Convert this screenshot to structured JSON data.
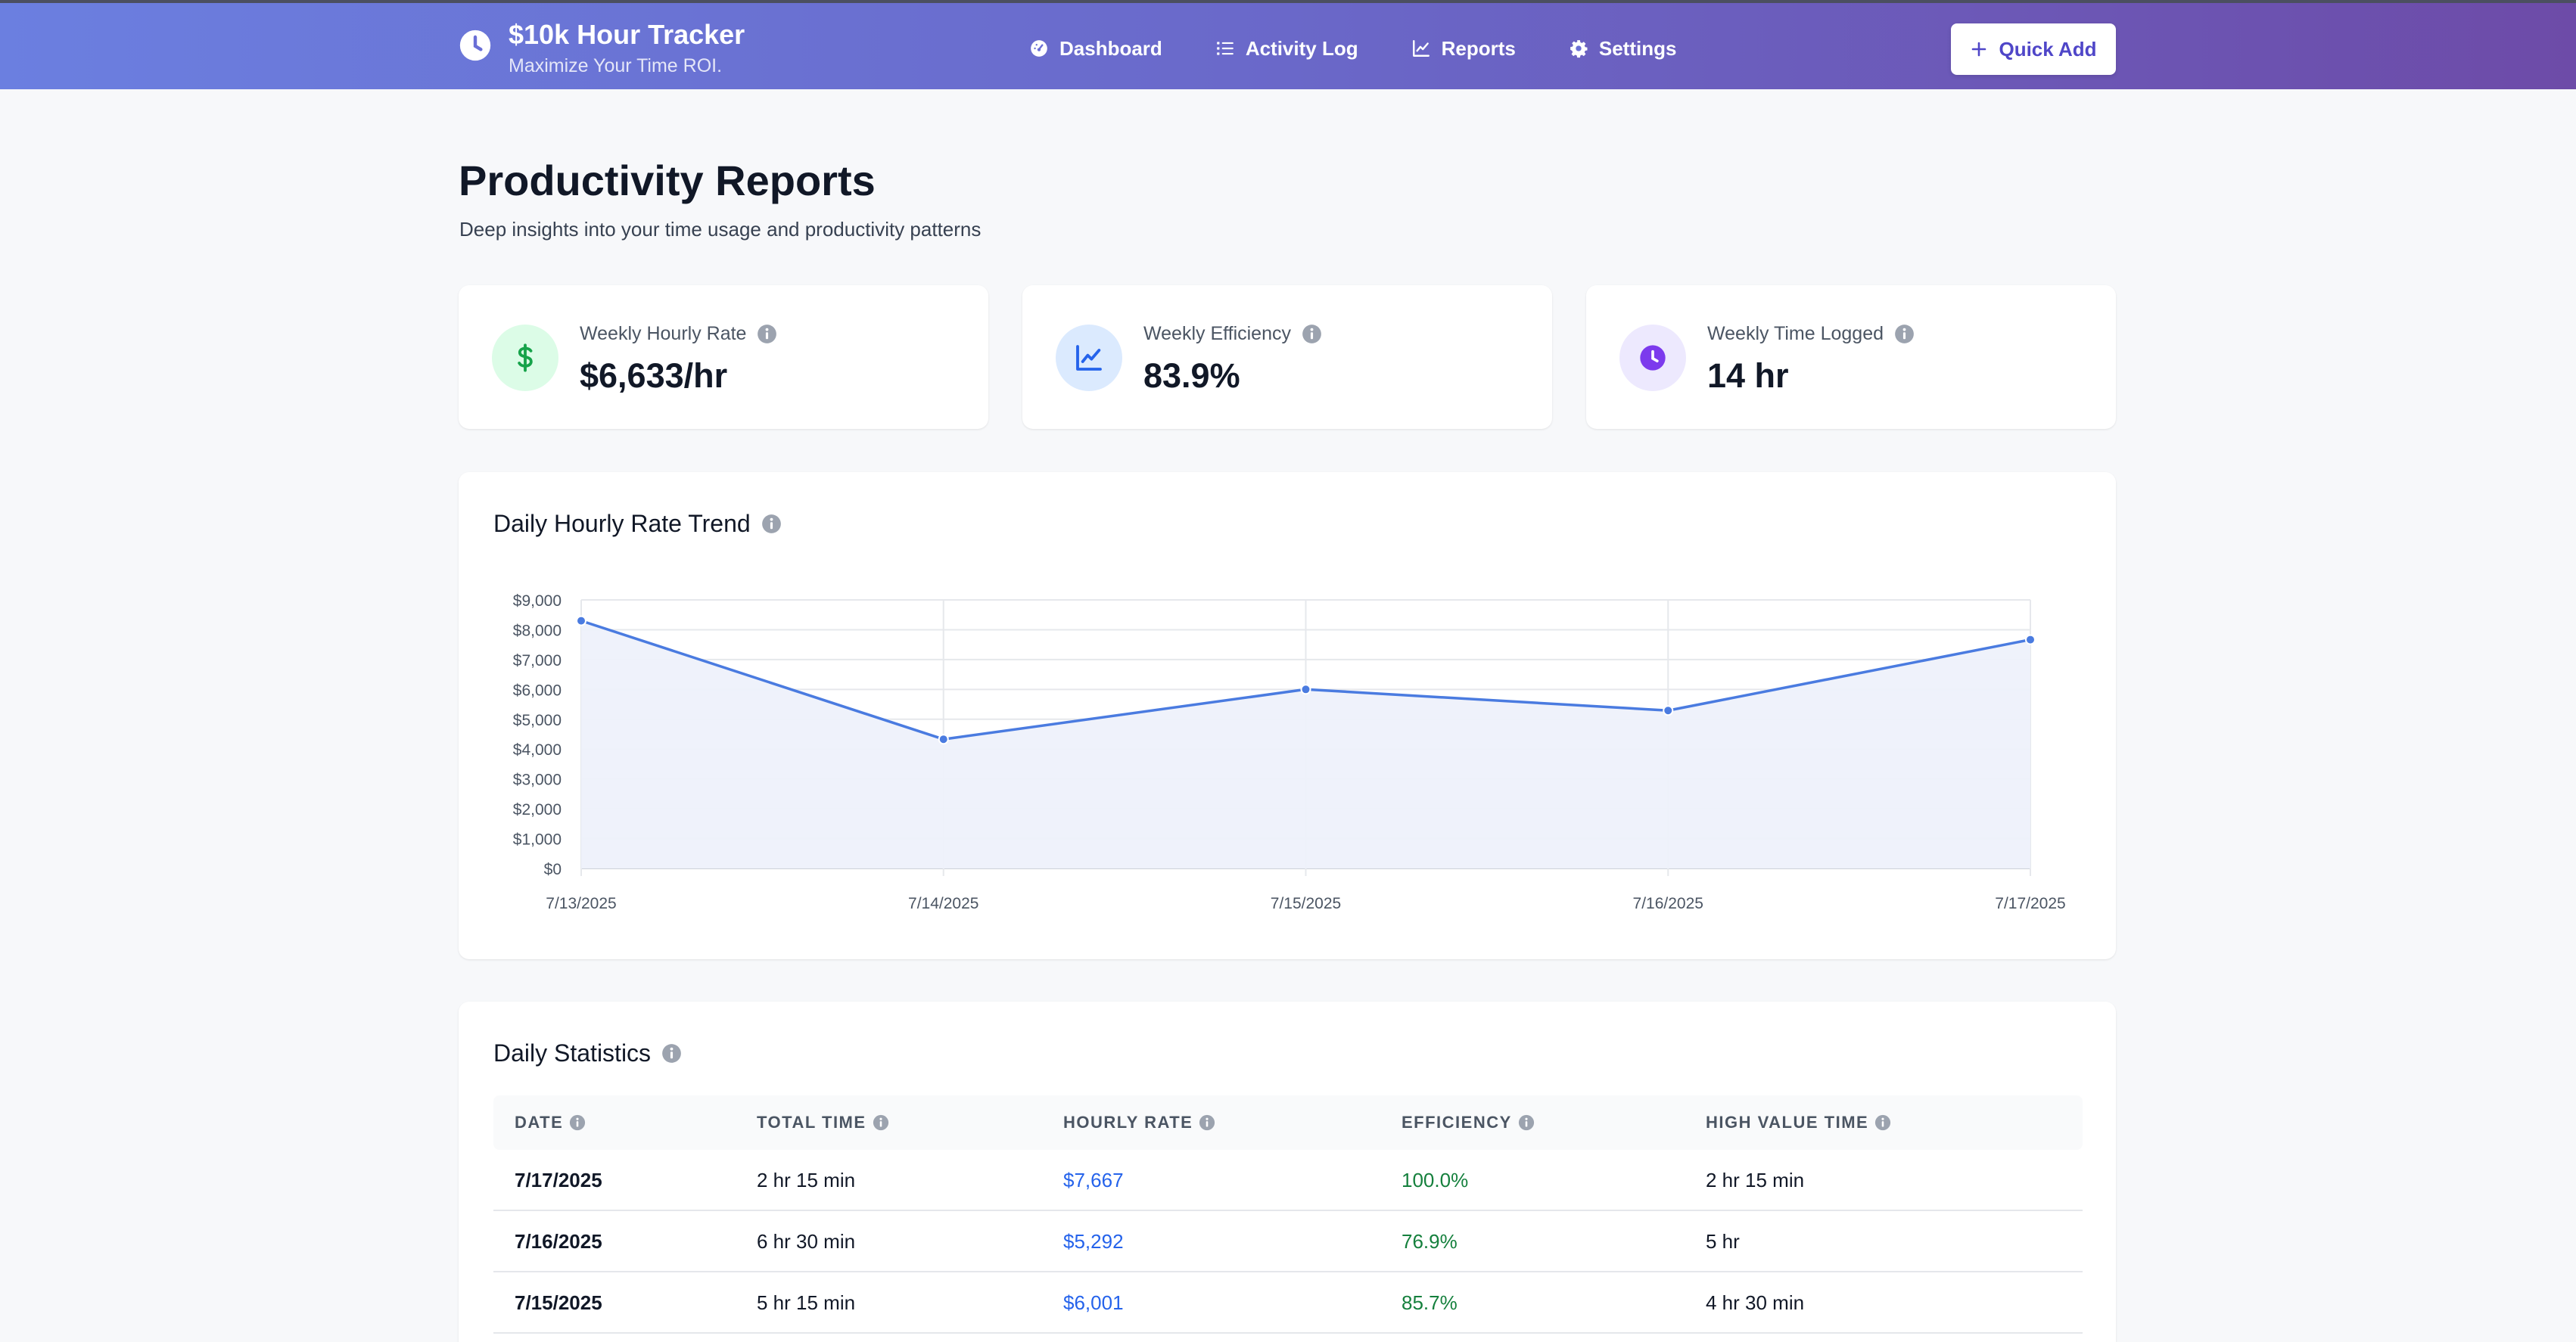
{
  "header": {
    "title": "$10k Hour Tracker",
    "subtitle": "Maximize Your Time ROI.",
    "nav": [
      {
        "label": "Dashboard",
        "icon": "dashboard-gauge-icon"
      },
      {
        "label": "Activity Log",
        "icon": "list-icon"
      },
      {
        "label": "Reports",
        "icon": "line-chart-icon"
      },
      {
        "label": "Settings",
        "icon": "gear-icon"
      }
    ],
    "quick_add_label": "Quick Add"
  },
  "page": {
    "title": "Productivity Reports",
    "subtitle": "Deep insights into your time usage and productivity patterns"
  },
  "stats": [
    {
      "label": "Weekly Hourly Rate",
      "value": "$6,633/hr",
      "icon": "dollar-icon",
      "color": "#16a34a",
      "bg": "#dcfce7"
    },
    {
      "label": "Weekly Efficiency",
      "value": "83.9%",
      "icon": "chart-line-icon",
      "color": "#2563eb",
      "bg": "#dbeafe"
    },
    {
      "label": "Weekly Time Logged",
      "value": "14 hr",
      "icon": "clock-icon",
      "color": "#7c3aed",
      "bg": "#ede9fe"
    }
  ],
  "chart": {
    "title": "Daily Hourly Rate Trend"
  },
  "chart_data": {
    "type": "line",
    "title": "Daily Hourly Rate Trend",
    "categories": [
      "7/13/2025",
      "7/14/2025",
      "7/15/2025",
      "7/16/2025",
      "7/17/2025"
    ],
    "series": [
      {
        "name": "Hourly Rate",
        "values": [
          8300,
          4330,
          6001,
          5292,
          7667
        ]
      }
    ],
    "y_ticks": [
      "$0",
      "$1,000",
      "$2,000",
      "$3,000",
      "$4,000",
      "$5,000",
      "$6,000",
      "$7,000",
      "$8,000",
      "$9,000"
    ],
    "ylim": [
      0,
      9000
    ],
    "grid": true,
    "line_color": "#4a7be0",
    "fill_color": "#eef1fb",
    "xlabel": "",
    "ylabel": ""
  },
  "table": {
    "title": "Daily Statistics",
    "columns": [
      "Date",
      "Total Time",
      "Hourly Rate",
      "Efficiency",
      "High Value Time"
    ],
    "rows": [
      {
        "date": "7/17/2025",
        "total": "2 hr 15 min",
        "rate": "$7,667",
        "eff": "100.0%",
        "hv": "2 hr 15 min"
      },
      {
        "date": "7/16/2025",
        "total": "6 hr 30 min",
        "rate": "$5,292",
        "eff": "76.9%",
        "hv": "5 hr"
      },
      {
        "date": "7/15/2025",
        "total": "5 hr 15 min",
        "rate": "$6,001",
        "eff": "85.7%",
        "hv": "4 hr 30 min"
      }
    ]
  }
}
